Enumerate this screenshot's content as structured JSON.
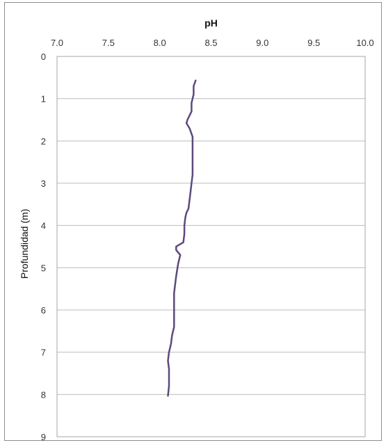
{
  "chart_data": {
    "type": "line",
    "title": "",
    "xlabel": "pH",
    "ylabel": "Profundidad (m)",
    "x_axis_position": "top",
    "y_axis_inverted": true,
    "xlim": [
      7.0,
      10.0
    ],
    "ylim": [
      0,
      9
    ],
    "x_ticks": [
      "7.0",
      "7.5",
      "8.0",
      "8.5",
      "9.0",
      "9.5",
      "10.0"
    ],
    "y_ticks": [
      "0",
      "1",
      "2",
      "3",
      "4",
      "5",
      "6",
      "7",
      "8",
      "9"
    ],
    "grid": "horizontal",
    "legend": "none",
    "line_color": "#5b4a7a",
    "series": [
      {
        "x": [
          8.35,
          8.33,
          8.33,
          8.31,
          8.31,
          8.29,
          8.27,
          8.26,
          8.29,
          8.32,
          8.32,
          8.32,
          8.32,
          8.32,
          8.31,
          8.3,
          8.29,
          8.28,
          8.26,
          8.25,
          8.24,
          8.24,
          8.23,
          8.16,
          8.16,
          8.2,
          8.18,
          8.16,
          8.15,
          8.14,
          8.14,
          8.14,
          8.14,
          8.14,
          8.12,
          8.11,
          8.09,
          8.08,
          8.09,
          8.09,
          8.09,
          8.08
        ],
        "y": [
          0.57,
          0.7,
          0.9,
          1.1,
          1.3,
          1.4,
          1.5,
          1.58,
          1.7,
          1.9,
          2.0,
          2.2,
          2.5,
          2.8,
          3.0,
          3.2,
          3.4,
          3.6,
          3.7,
          3.8,
          4.0,
          4.2,
          4.4,
          4.5,
          4.58,
          4.7,
          4.9,
          5.2,
          5.4,
          5.6,
          5.8,
          6.0,
          6.2,
          6.4,
          6.6,
          6.8,
          7.0,
          7.2,
          7.4,
          7.6,
          7.8,
          8.03
        ]
      }
    ]
  }
}
